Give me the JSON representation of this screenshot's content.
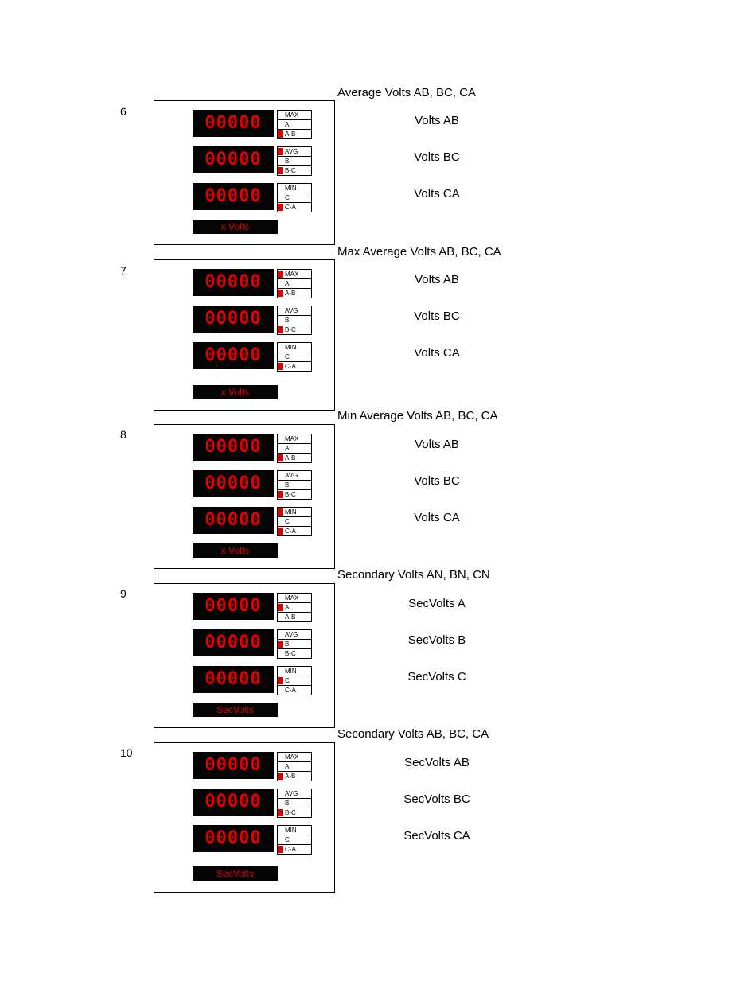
{
  "panels": [
    {
      "number": "6",
      "title": "Average Volts AB, BC, CA",
      "displays": [
        {
          "value": "00000",
          "indicators": [
            {
              "label": "MAX",
              "on": false
            },
            {
              "label": "A",
              "on": false
            },
            {
              "label": "A-B",
              "on": true
            }
          ]
        },
        {
          "value": "00000",
          "indicators": [
            {
              "label": "AVG",
              "on": true
            },
            {
              "label": "B",
              "on": false
            },
            {
              "label": "B-C",
              "on": true
            }
          ]
        },
        {
          "value": "00000",
          "indicators": [
            {
              "label": "MIN",
              "on": false
            },
            {
              "label": "C",
              "on": false
            },
            {
              "label": "C-A",
              "on": true
            }
          ]
        }
      ],
      "unit": "x Volts",
      "readings": [
        "Volts AB",
        "Volts BC",
        "Volts CA"
      ]
    },
    {
      "number": "7",
      "title": "Max Average Volts AB, BC, CA",
      "displays": [
        {
          "value": "00000",
          "indicators": [
            {
              "label": "MAX",
              "on": true
            },
            {
              "label": "A",
              "on": false
            },
            {
              "label": "A-B",
              "on": true
            }
          ]
        },
        {
          "value": "00000",
          "indicators": [
            {
              "label": "AVG",
              "on": false
            },
            {
              "label": "B",
              "on": false
            },
            {
              "label": "B-C",
              "on": true
            }
          ]
        },
        {
          "value": "00000",
          "indicators": [
            {
              "label": "MIN",
              "on": false
            },
            {
              "label": "C",
              "on": false
            },
            {
              "label": "C-A",
              "on": true
            }
          ]
        }
      ],
      "unit": "x Volts",
      "readings": [
        "Volts AB",
        "Volts BC",
        "Volts CA"
      ]
    },
    {
      "number": "8",
      "title": "Min Average Volts AB, BC, CA",
      "displays": [
        {
          "value": "00000",
          "indicators": [
            {
              "label": "MAX",
              "on": false
            },
            {
              "label": "A",
              "on": false
            },
            {
              "label": "A-B",
              "on": true
            }
          ]
        },
        {
          "value": "00000",
          "indicators": [
            {
              "label": "AVG",
              "on": false
            },
            {
              "label": "B",
              "on": false
            },
            {
              "label": "B-C",
              "on": true
            }
          ]
        },
        {
          "value": "00000",
          "indicators": [
            {
              "label": "MIN",
              "on": true
            },
            {
              "label": "C",
              "on": false
            },
            {
              "label": "C-A",
              "on": true
            }
          ]
        }
      ],
      "unit": "x Volts",
      "readings": [
        "Volts AB",
        "Volts BC",
        "Volts CA"
      ]
    },
    {
      "number": "9",
      "title": "Secondary Volts AN, BN, CN",
      "displays": [
        {
          "value": "00000",
          "indicators": [
            {
              "label": "MAX",
              "on": false
            },
            {
              "label": "A",
              "on": true
            },
            {
              "label": "A-B",
              "on": false
            }
          ]
        },
        {
          "value": "00000",
          "indicators": [
            {
              "label": "AVG",
              "on": false
            },
            {
              "label": "B",
              "on": true
            },
            {
              "label": "B-C",
              "on": false
            }
          ]
        },
        {
          "value": "00000",
          "indicators": [
            {
              "label": "MIN",
              "on": false
            },
            {
              "label": "C",
              "on": true
            },
            {
              "label": "C-A",
              "on": false
            }
          ]
        }
      ],
      "unit": "SecVolts",
      "readings": [
        "SecVolts A",
        "SecVolts B",
        "SecVolts C"
      ]
    },
    {
      "number": "10",
      "title": "Secondary Volts AB, BC, CA",
      "displays": [
        {
          "value": "00000",
          "indicators": [
            {
              "label": "MAX",
              "on": false
            },
            {
              "label": "A",
              "on": false
            },
            {
              "label": "A-B",
              "on": true
            }
          ]
        },
        {
          "value": "00000",
          "indicators": [
            {
              "label": "AVG",
              "on": false
            },
            {
              "label": "B",
              "on": false
            },
            {
              "label": "B-C",
              "on": true
            }
          ]
        },
        {
          "value": "00000",
          "indicators": [
            {
              "label": "MIN",
              "on": false
            },
            {
              "label": "C",
              "on": false
            },
            {
              "label": "C-A",
              "on": true
            }
          ]
        }
      ],
      "unit": "SecVolts",
      "readings": [
        "SecVolts AB",
        "SecVolts BC",
        "SecVolts CA"
      ]
    }
  ]
}
